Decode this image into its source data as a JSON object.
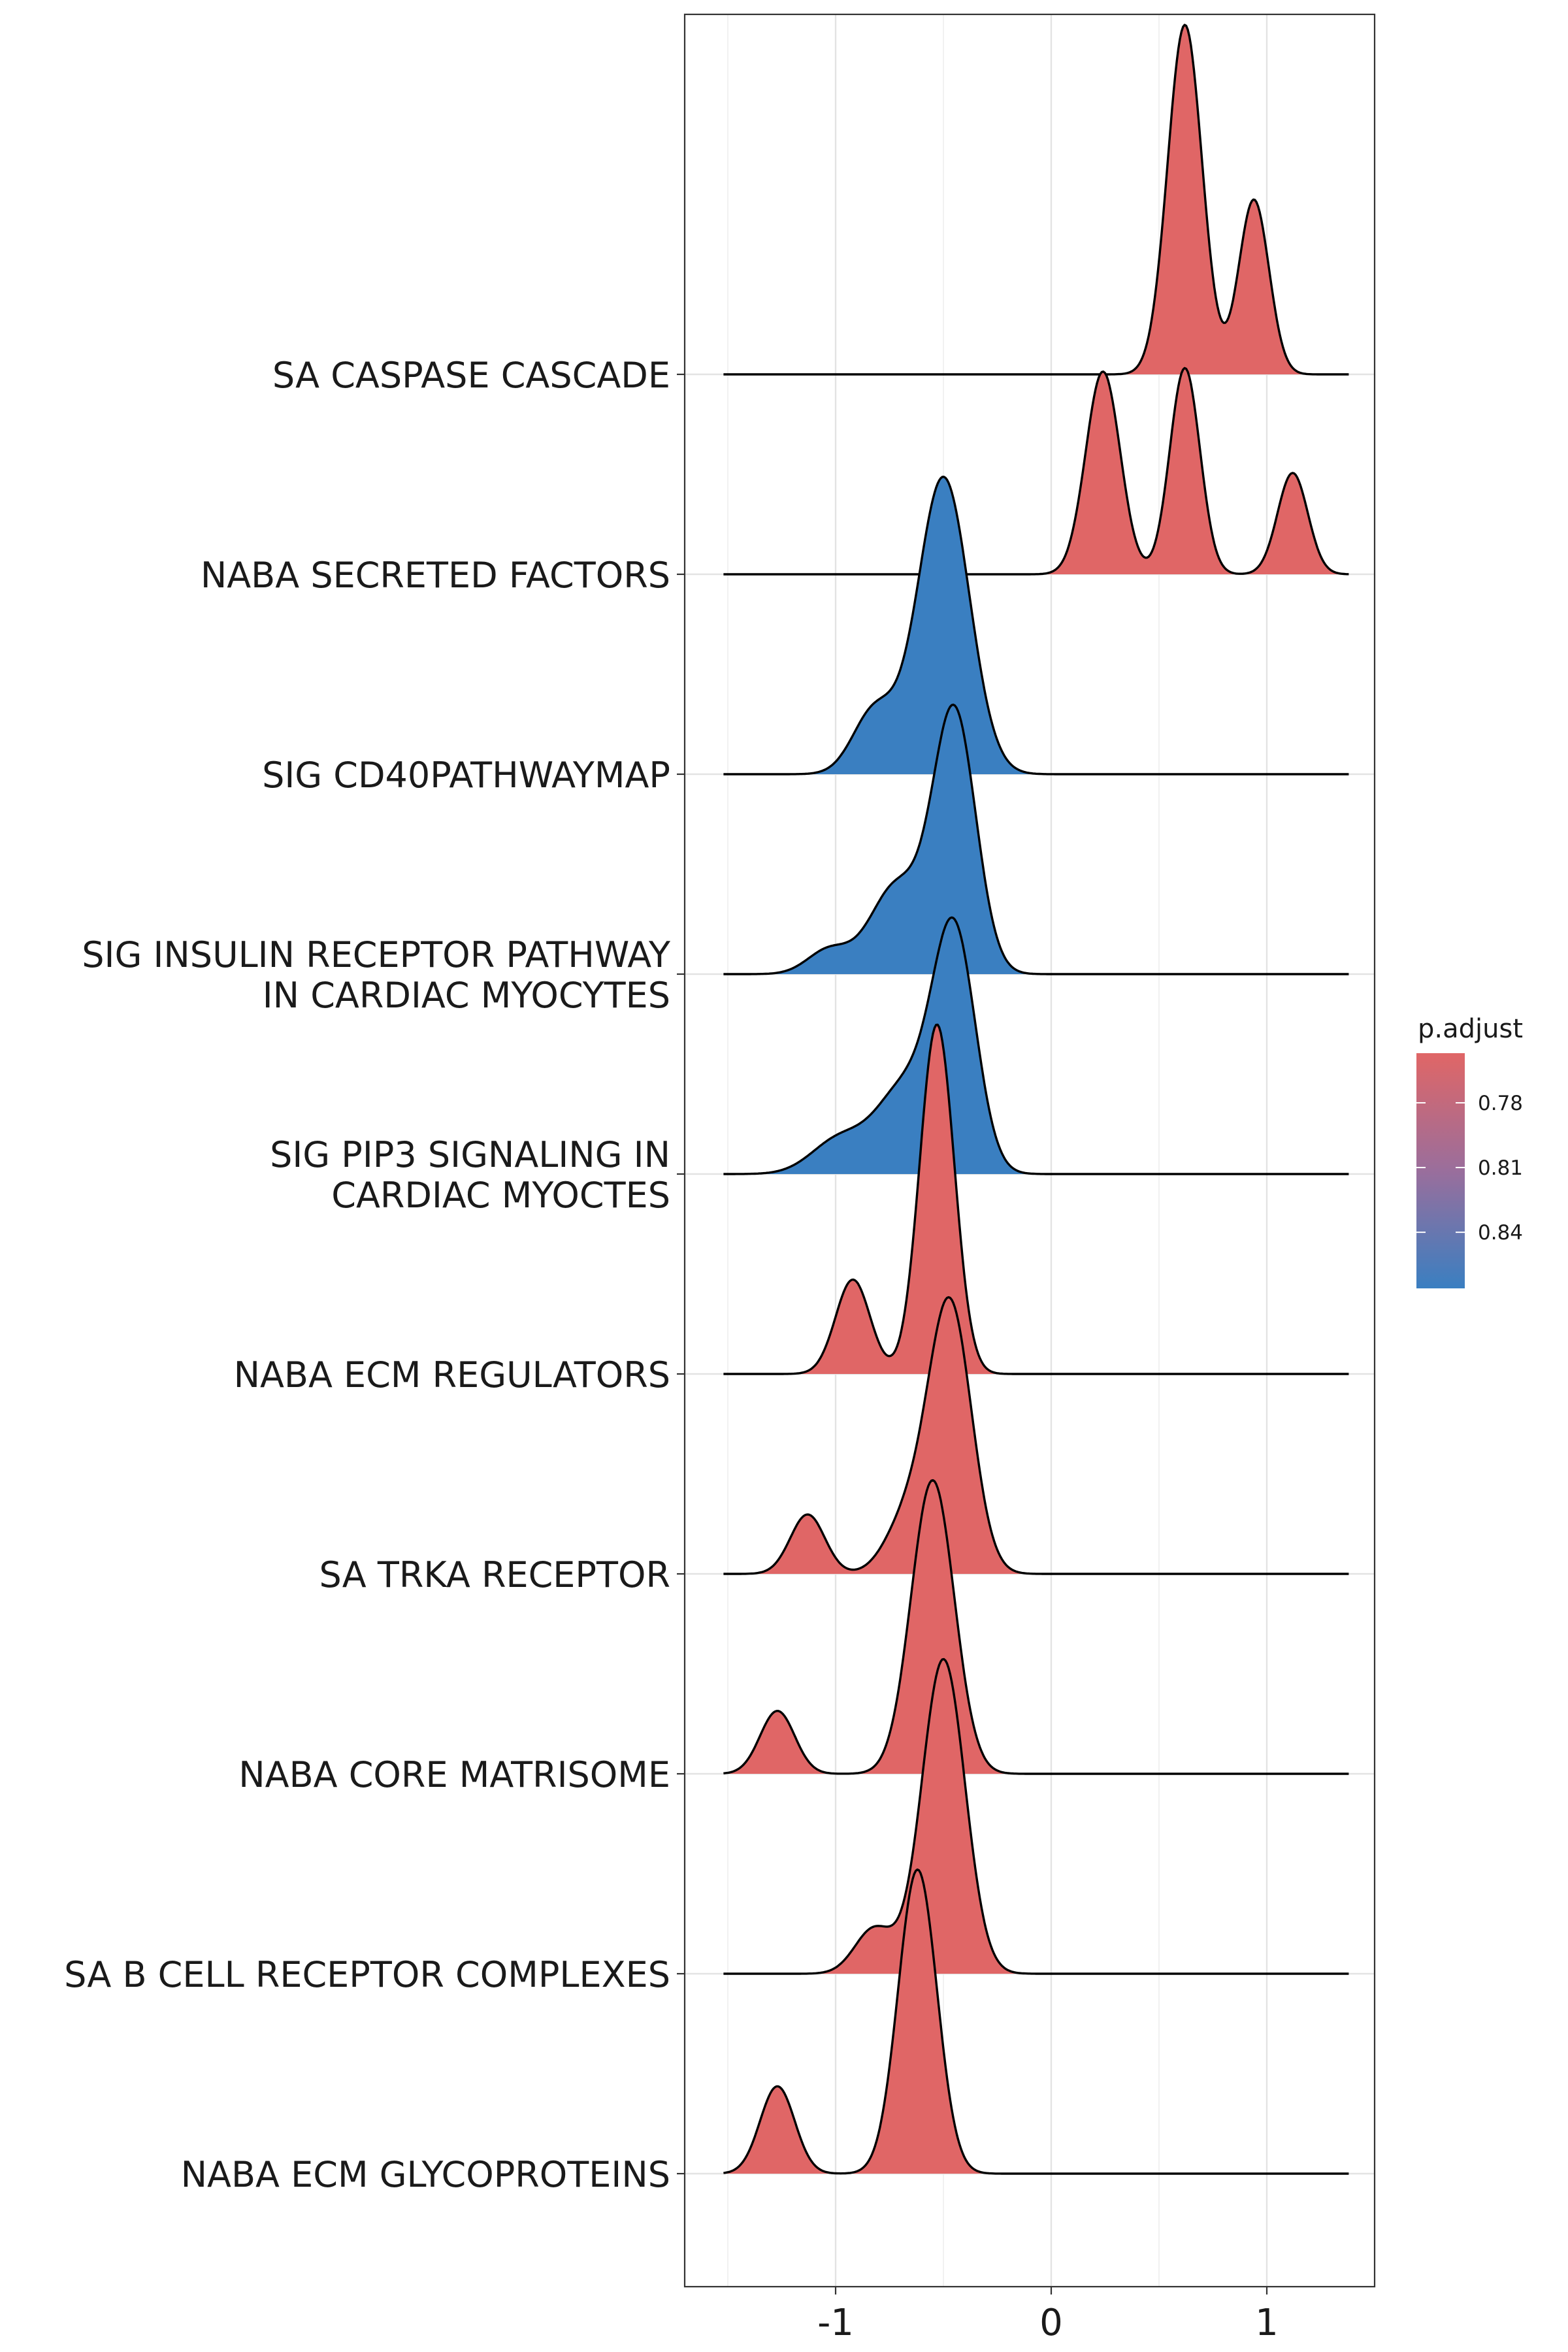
{
  "chart_data": {
    "type": "ridgeline",
    "xlabel": "",
    "ylabel": "",
    "xlim": [
      -1.7,
      1.5
    ],
    "x_ticks": [
      -1,
      0,
      1
    ],
    "x_tick_labels": [
      "-1",
      "0",
      "1"
    ],
    "grid": true,
    "legend": {
      "title": "p.adjust",
      "placement": "right",
      "ticks": [
        0.78,
        0.81,
        0.84
      ],
      "tick_labels": [
        "0.78",
        "0.81",
        "0.84"
      ],
      "range": [
        0.757,
        0.866
      ],
      "color_low": "#E06666",
      "color_high": "#3A7FC1"
    },
    "series": [
      {
        "category_lines": [
          "SA CASPASE CASCADE"
        ],
        "p_adjust": 0.757,
        "color": "#E06666",
        "peaks": [
          [
            0.62,
            0.08,
            1.0
          ],
          [
            0.94,
            0.07,
            0.5
          ]
        ]
      },
      {
        "category_lines": [
          "NABA SECRETED FACTORS"
        ],
        "p_adjust": 0.757,
        "color": "#E06666",
        "peaks": [
          [
            0.24,
            0.08,
            0.58
          ],
          [
            0.62,
            0.07,
            0.59
          ],
          [
            1.12,
            0.07,
            0.29
          ]
        ]
      },
      {
        "category_lines": [
          "SIG CD40PATHWAYMAP"
        ],
        "p_adjust": 0.866,
        "color": "#3A7FC1",
        "peaks": [
          [
            -0.5,
            0.12,
            0.85
          ],
          [
            -0.82,
            0.1,
            0.18
          ]
        ]
      },
      {
        "category_lines": [
          "SIG INSULIN RECEPTOR PATHWAY",
          "IN CARDIAC MYOCYTES"
        ],
        "p_adjust": 0.866,
        "color": "#3A7FC1",
        "peaks": [
          [
            -0.45,
            0.1,
            0.75
          ],
          [
            -0.72,
            0.12,
            0.25
          ],
          [
            -1.03,
            0.1,
            0.07
          ]
        ]
      },
      {
        "category_lines": [
          "SIG PIP3 SIGNALING IN",
          "CARDIAC MYOCTES"
        ],
        "p_adjust": 0.866,
        "color": "#3A7FC1",
        "peaks": [
          [
            -0.45,
            0.1,
            0.68
          ],
          [
            -0.68,
            0.13,
            0.24
          ],
          [
            -0.98,
            0.13,
            0.1
          ]
        ]
      },
      {
        "category_lines": [
          "NABA ECM REGULATORS"
        ],
        "p_adjust": 0.757,
        "color": "#E06666",
        "peaks": [
          [
            -0.53,
            0.08,
            1.0
          ],
          [
            -0.92,
            0.08,
            0.27
          ]
        ]
      },
      {
        "category_lines": [
          "SA TRKA RECEPTOR"
        ],
        "p_adjust": 0.757,
        "color": "#E06666",
        "peaks": [
          [
            -0.47,
            0.1,
            0.77
          ],
          [
            -0.67,
            0.1,
            0.15
          ],
          [
            -1.13,
            0.08,
            0.17
          ]
        ]
      },
      {
        "category_lines": [
          "NABA CORE MATRISOME"
        ],
        "p_adjust": 0.757,
        "color": "#E06666",
        "peaks": [
          [
            -0.55,
            0.1,
            0.84
          ],
          [
            -1.27,
            0.08,
            0.18
          ]
        ]
      },
      {
        "category_lines": [
          "SA B CELL RECEPTOR COMPLEXES"
        ],
        "p_adjust": 0.757,
        "color": "#E06666",
        "peaks": [
          [
            -0.5,
            0.1,
            0.9
          ],
          [
            -0.82,
            0.09,
            0.13
          ]
        ]
      },
      {
        "category_lines": [
          "NABA ECM GLYCOPROTEINS"
        ],
        "p_adjust": 0.757,
        "color": "#E06666",
        "peaks": [
          [
            -0.62,
            0.09,
            0.87
          ],
          [
            -1.27,
            0.08,
            0.25
          ]
        ]
      }
    ]
  }
}
